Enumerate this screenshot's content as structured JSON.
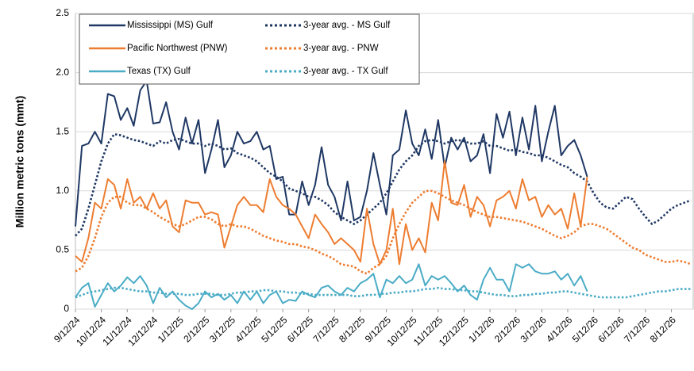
{
  "chart_data": {
    "type": "line",
    "ylabel": "Million metric tons (mmt)",
    "ylim": [
      0,
      2.5
    ],
    "yticks": [
      0,
      0.5,
      {
        "value": 1,
        "label": "1.0"
      },
      1.5,
      {
        "value": 2,
        "label": "2.0"
      },
      2.5
    ],
    "grid": true,
    "legend": "top-left",
    "categories": [
      "9/12/24",
      null,
      null,
      null,
      "10/12/24",
      null,
      null,
      null,
      "11/12/24",
      null,
      null,
      null,
      "12/12/24",
      null,
      null,
      null,
      "1/12/25",
      null,
      null,
      null,
      "2/12/25",
      null,
      null,
      null,
      "3/12/25",
      null,
      null,
      null,
      "4/12/25",
      null,
      null,
      null,
      "5/12/25",
      null,
      null,
      null,
      "6/12/25",
      null,
      null,
      null,
      "7/12/25",
      null,
      null,
      null,
      "8/12/25",
      null,
      null,
      null,
      "9/12/25",
      null,
      null,
      null,
      "10/12/25",
      null,
      null,
      null,
      "11/12/25",
      null,
      null,
      null,
      "12/12/25",
      null,
      null,
      null,
      "1/12/26",
      null,
      null,
      null,
      "2/12/26",
      null,
      null,
      null,
      "3/12/26",
      null,
      null,
      null,
      "4/12/26",
      null,
      null,
      null,
      "5/12/26",
      null,
      null,
      null,
      "6/12/26",
      null,
      null,
      null,
      "7/12/26",
      null,
      null,
      null,
      "8/12/26",
      null,
      null,
      null
    ],
    "series": [
      {
        "name": "Mississippi (MS) Gulf",
        "color": "#1f3864",
        "line_style": "solid",
        "values": [
          0.7,
          1.38,
          1.4,
          1.5,
          1.4,
          1.82,
          1.8,
          1.6,
          1.7,
          1.55,
          1.85,
          1.93,
          1.57,
          1.58,
          1.75,
          1.5,
          1.35,
          1.62,
          1.4,
          1.6,
          1.15,
          1.35,
          1.6,
          1.2,
          1.3,
          1.5,
          1.4,
          1.42,
          1.5,
          1.35,
          1.38,
          1.1,
          1.12,
          0.8,
          0.8,
          1.08,
          0.88,
          1.05,
          1.37,
          1.05,
          0.95,
          0.75,
          1.08,
          0.75,
          0.78,
          1.0,
          1.32,
          1.05,
          0.8,
          1.3,
          1.35,
          1.68,
          1.4,
          1.3,
          1.52,
          1.27,
          1.6,
          1.2,
          1.45,
          1.35,
          1.45,
          1.25,
          1.3,
          1.48,
          1.15,
          1.65,
          1.45,
          1.67,
          1.3,
          1.62,
          1.35,
          1.72,
          1.25,
          1.5,
          1.72,
          1.3,
          1.38,
          1.43,
          1.3,
          1.12,
          null,
          null,
          null,
          null,
          null,
          null,
          null,
          null,
          null,
          null,
          null,
          null,
          null,
          null,
          null,
          null
        ]
      },
      {
        "name": "3-year avg. - MS Gulf",
        "color": "#1f3864",
        "line_style": "dotted",
        "values": [
          0.62,
          0.68,
          0.85,
          1.05,
          1.25,
          1.4,
          1.48,
          1.47,
          1.45,
          1.43,
          1.42,
          1.4,
          1.38,
          1.42,
          1.4,
          1.43,
          1.44,
          1.42,
          1.4,
          1.4,
          1.38,
          1.4,
          1.38,
          1.35,
          1.36,
          1.32,
          1.3,
          1.28,
          1.25,
          1.2,
          1.15,
          1.12,
          1.08,
          1.02,
          1.0,
          0.98,
          0.95,
          0.95,
          0.92,
          0.88,
          0.82,
          0.78,
          0.75,
          0.72,
          0.75,
          0.8,
          0.85,
          0.9,
          0.98,
          1.08,
          1.18,
          1.25,
          1.3,
          1.38,
          1.42,
          1.43,
          1.42,
          1.4,
          1.42,
          1.43,
          1.42,
          1.4,
          1.4,
          1.42,
          1.38,
          1.38,
          1.36,
          1.34,
          1.35,
          1.33,
          1.32,
          1.3,
          1.3,
          1.28,
          1.25,
          1.22,
          1.2,
          1.15,
          1.12,
          1.08,
          0.98,
          0.9,
          0.86,
          0.85,
          0.9,
          0.95,
          0.93,
          0.85,
          0.78,
          0.72,
          0.75,
          0.8,
          0.85,
          0.88,
          0.9,
          0.92
        ]
      },
      {
        "name": "Pacific Northwest (PNW)",
        "color": "#ed7d31",
        "line_style": "solid",
        "values": [
          0.45,
          0.4,
          0.6,
          0.9,
          0.85,
          1.1,
          1.05,
          0.85,
          1.1,
          0.9,
          0.95,
          0.85,
          0.98,
          0.85,
          0.92,
          0.7,
          0.65,
          0.92,
          0.9,
          0.9,
          0.8,
          0.82,
          0.8,
          0.52,
          0.7,
          0.88,
          0.95,
          0.88,
          0.88,
          0.82,
          1.1,
          0.95,
          0.88,
          0.85,
          0.8,
          0.7,
          0.6,
          0.8,
          0.72,
          0.65,
          0.55,
          0.6,
          0.55,
          0.5,
          0.4,
          0.85,
          0.55,
          0.38,
          0.5,
          0.85,
          0.38,
          0.72,
          0.5,
          0.6,
          0.48,
          0.9,
          0.75,
          1.25,
          0.9,
          0.88,
          1.05,
          0.78,
          0.95,
          0.88,
          0.7,
          0.92,
          0.95,
          1.0,
          0.85,
          1.1,
          0.92,
          0.95,
          0.78,
          0.88,
          0.8,
          0.85,
          0.68,
          0.98,
          0.7,
          1.12,
          null,
          null,
          null,
          null,
          null,
          null,
          null,
          null,
          null,
          null,
          null,
          null,
          null,
          null,
          null,
          null
        ]
      },
      {
        "name": "3-year avg. - PNW",
        "color": "#ed7d31",
        "line_style": "dotted",
        "values": [
          0.32,
          0.35,
          0.45,
          0.6,
          0.78,
          0.9,
          0.95,
          0.95,
          0.9,
          0.88,
          0.88,
          0.85,
          0.82,
          0.78,
          0.75,
          0.72,
          0.7,
          0.72,
          0.75,
          0.78,
          0.78,
          0.76,
          0.72,
          0.7,
          0.72,
          0.7,
          0.7,
          0.68,
          0.65,
          0.62,
          0.6,
          0.58,
          0.57,
          0.55,
          0.55,
          0.53,
          0.52,
          0.5,
          0.47,
          0.45,
          0.42,
          0.38,
          0.37,
          0.36,
          0.32,
          0.3,
          0.35,
          0.38,
          0.45,
          0.6,
          0.72,
          0.82,
          0.9,
          0.95,
          1.0,
          1.0,
          0.98,
          0.95,
          0.92,
          0.9,
          0.88,
          0.85,
          0.82,
          0.8,
          0.78,
          0.78,
          0.77,
          0.76,
          0.75,
          0.74,
          0.72,
          0.7,
          0.68,
          0.65,
          0.62,
          0.6,
          0.62,
          0.65,
          0.7,
          0.72,
          0.72,
          0.7,
          0.68,
          0.64,
          0.6,
          0.56,
          0.52,
          0.5,
          0.46,
          0.44,
          0.42,
          0.4,
          0.4,
          0.41,
          0.4,
          0.38
        ]
      },
      {
        "name": "Texas (TX) Gulf",
        "color": "#4bacc6",
        "line_style": "solid",
        "values": [
          0.1,
          0.18,
          0.22,
          0.02,
          0.12,
          0.22,
          0.15,
          0.2,
          0.27,
          0.22,
          0.28,
          0.2,
          0.05,
          0.18,
          0.1,
          0.15,
          0.08,
          0.03,
          0.0,
          0.05,
          0.15,
          0.1,
          0.13,
          0.08,
          0.12,
          0.05,
          0.15,
          0.08,
          0.15,
          0.05,
          0.12,
          0.15,
          0.05,
          0.08,
          0.07,
          0.15,
          0.12,
          0.1,
          0.18,
          0.2,
          0.15,
          0.12,
          0.18,
          0.15,
          0.22,
          0.25,
          0.3,
          0.1,
          0.25,
          0.22,
          0.28,
          0.22,
          0.25,
          0.38,
          0.2,
          0.28,
          0.25,
          0.28,
          0.22,
          0.15,
          0.2,
          0.12,
          0.08,
          0.25,
          0.35,
          0.25,
          0.25,
          0.15,
          0.38,
          0.35,
          0.38,
          0.32,
          0.3,
          0.3,
          0.32,
          0.25,
          0.3,
          0.2,
          0.28,
          0.15,
          null,
          null,
          null,
          null,
          null,
          null,
          null,
          null,
          null,
          null,
          null,
          null,
          null,
          null,
          null,
          null
        ]
      },
      {
        "name": "3-year avg. - TX Gulf",
        "color": "#4bacc6",
        "line_style": "dotted",
        "values": [
          0.1,
          0.12,
          0.14,
          0.15,
          0.16,
          0.17,
          0.18,
          0.18,
          0.17,
          0.16,
          0.15,
          0.15,
          0.14,
          0.14,
          0.13,
          0.13,
          0.13,
          0.12,
          0.12,
          0.13,
          0.13,
          0.13,
          0.12,
          0.12,
          0.13,
          0.14,
          0.14,
          0.15,
          0.15,
          0.16,
          0.16,
          0.15,
          0.15,
          0.14,
          0.14,
          0.13,
          0.13,
          0.12,
          0.12,
          0.12,
          0.12,
          0.12,
          0.12,
          0.11,
          0.11,
          0.12,
          0.12,
          0.13,
          0.13,
          0.14,
          0.14,
          0.15,
          0.15,
          0.16,
          0.17,
          0.17,
          0.18,
          0.17,
          0.17,
          0.16,
          0.16,
          0.15,
          0.15,
          0.14,
          0.13,
          0.12,
          0.12,
          0.11,
          0.11,
          0.12,
          0.12,
          0.13,
          0.13,
          0.14,
          0.14,
          0.15,
          0.15,
          0.14,
          0.13,
          0.12,
          0.11,
          0.1,
          0.1,
          0.1,
          0.1,
          0.1,
          0.11,
          0.12,
          0.13,
          0.14,
          0.15,
          0.15,
          0.16,
          0.17,
          0.17,
          0.17
        ]
      }
    ]
  }
}
